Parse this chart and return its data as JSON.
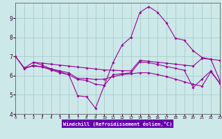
{
  "xlabel": "Windchill (Refroidissement éolien,°C)",
  "bg_color": "#cce8e8",
  "grid_color": "#aacccc",
  "line_color": "#990099",
  "axis_label_bg": "#6600aa",
  "axis_label_fg": "#ffffff",
  "xlim": [
    0,
    23
  ],
  "ylim": [
    4,
    9.8
  ],
  "xticks": [
    0,
    1,
    2,
    3,
    4,
    5,
    6,
    7,
    8,
    9,
    10,
    11,
    12,
    13,
    14,
    15,
    16,
    17,
    18,
    19,
    20,
    21,
    22,
    23
  ],
  "yticks": [
    4,
    5,
    6,
    7,
    8,
    9
  ],
  "series": [
    {
      "x": [
        2,
        3,
        4,
        5,
        6,
        7,
        8,
        9,
        10,
        11,
        12,
        13,
        14,
        15,
        16,
        17,
        18,
        19,
        20,
        21,
        22,
        23
      ],
      "y": [
        6.7,
        6.65,
        6.6,
        6.55,
        6.5,
        6.45,
        6.4,
        6.35,
        6.3,
        6.28,
        6.26,
        6.25,
        6.8,
        6.75,
        6.7,
        6.65,
        6.6,
        6.55,
        6.5,
        6.9,
        6.85,
        6.8
      ]
    },
    {
      "x": [
        0,
        1,
        2,
        3,
        4,
        5,
        6,
        7,
        8,
        9,
        10,
        11,
        12,
        13,
        14,
        15,
        16,
        17,
        18,
        19,
        20,
        21,
        22,
        23
      ],
      "y": [
        7.0,
        6.4,
        6.7,
        6.55,
        6.35,
        6.2,
        6.05,
        4.95,
        4.9,
        4.3,
        5.5,
        6.7,
        7.6,
        8.0,
        9.3,
        9.6,
        9.3,
        8.75,
        7.95,
        7.85,
        7.3,
        6.95,
        6.85,
        5.75
      ]
    },
    {
      "x": [
        1,
        2,
        3,
        4,
        5,
        6,
        7,
        8,
        9,
        10,
        11,
        12,
        13,
        14,
        15,
        16,
        17,
        18,
        19,
        20,
        21,
        22,
        23
      ],
      "y": [
        6.4,
        6.5,
        6.45,
        6.35,
        6.25,
        6.15,
        5.85,
        5.85,
        5.8,
        5.82,
        5.95,
        6.05,
        6.1,
        6.15,
        6.15,
        6.05,
        5.95,
        5.82,
        5.68,
        5.55,
        5.45,
        6.2,
        5.6
      ]
    },
    {
      "x": [
        0,
        1,
        2,
        3,
        4,
        5,
        6,
        7,
        8,
        9,
        10,
        11,
        12,
        13,
        14,
        15,
        16,
        17,
        18,
        19,
        20,
        21,
        22,
        23
      ],
      "y": [
        7.0,
        6.35,
        6.55,
        6.45,
        6.3,
        6.15,
        6.05,
        5.8,
        5.75,
        5.55,
        5.5,
        6.05,
        6.1,
        6.15,
        6.72,
        6.68,
        6.58,
        6.48,
        6.38,
        6.28,
        5.38,
        5.82,
        6.25,
        5.6
      ]
    }
  ]
}
